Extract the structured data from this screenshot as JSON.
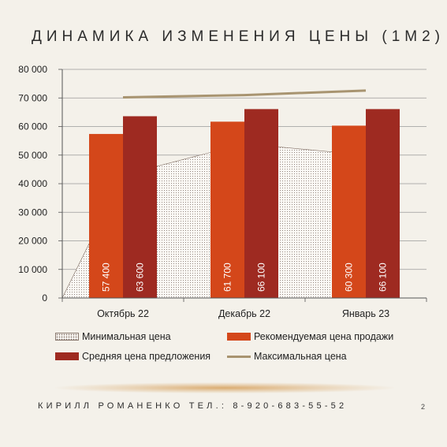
{
  "slide": {
    "title": "ДИНАМИКА ИЗМЕНЕНИЯ ЦЕНЫ (1М2)",
    "footer": "КИРИЛЛ РОМАНЕНКО ТЕЛ.: 8-920-683-55-52",
    "page_number": "2"
  },
  "colors": {
    "background": "#f4f1ea",
    "recommended": "#d4471a",
    "average": "#9e2a21",
    "max_line": "#a89470",
    "min_area_fill": "#fbf9f5",
    "min_area_border": "#7c6a60",
    "gridline": "#9a9a9a"
  },
  "chart_data": {
    "type": "bar",
    "title": "ДИНАМИКА ИЗМЕНЕНИЯ ЦЕНЫ (1М2)",
    "categories": [
      "Октябрь 22",
      "Декабрь 22",
      "Январь 23"
    ],
    "ylim": [
      0,
      80000
    ],
    "yticks": [
      0,
      10000,
      20000,
      30000,
      40000,
      50000,
      60000,
      70000,
      80000
    ],
    "ytick_labels": [
      "0",
      "10 000",
      "20 000",
      "30 000",
      "40 000",
      "50 000",
      "60 000",
      "70 000",
      "80 000"
    ],
    "grid": true,
    "legend_position": "bottom",
    "series": [
      {
        "name": "Минимальная цена",
        "type": "area",
        "values": [
          43000,
          54000,
          50000
        ]
      },
      {
        "name": "Рекомендуемая цена продажи",
        "type": "bar",
        "values": [
          57400,
          61700,
          60300
        ],
        "labels": [
          "57 400",
          "61 700",
          "60 300"
        ]
      },
      {
        "name": "Средняя цена предложения",
        "type": "bar",
        "values": [
          63600,
          66100,
          66100
        ],
        "labels": [
          "63 600",
          "66 100",
          "66 100"
        ]
      },
      {
        "name": "Максимальная цена",
        "type": "line",
        "values": [
          70200,
          71000,
          72600
        ]
      }
    ]
  }
}
